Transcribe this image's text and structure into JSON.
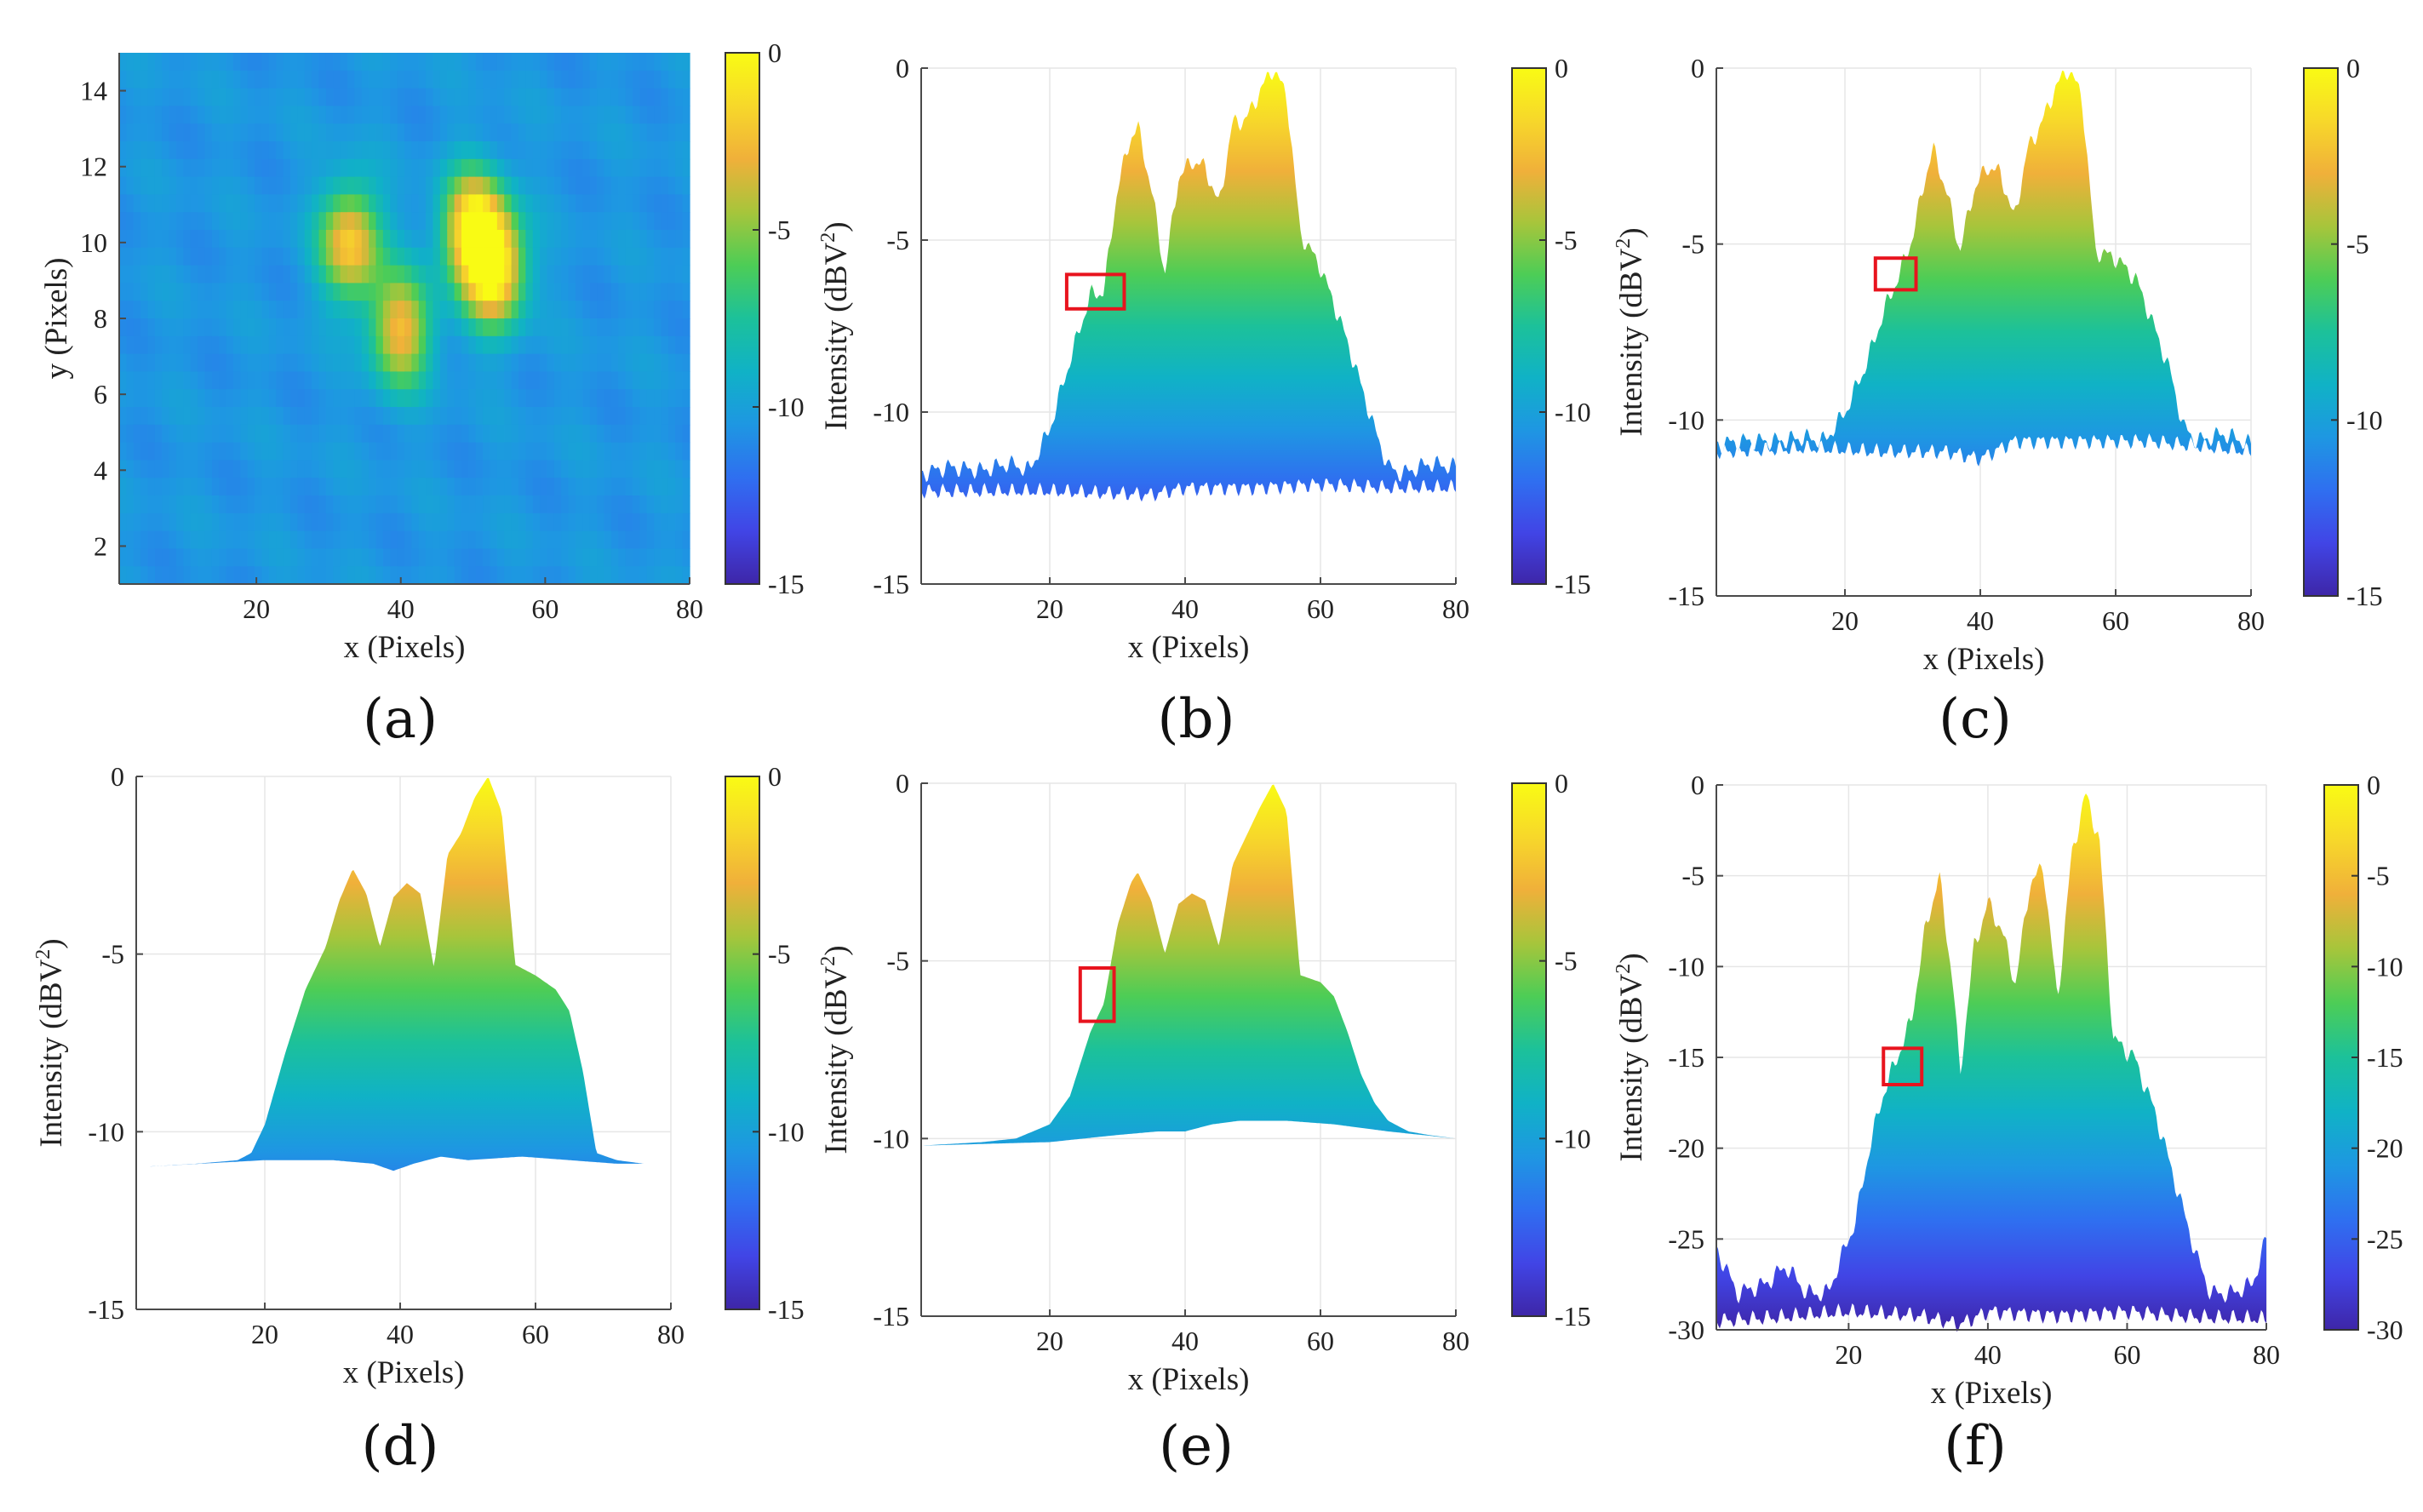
{
  "colors": {
    "colormap": [
      "#3e26a8",
      "#4145e6",
      "#2f6ff0",
      "#1e97e2",
      "#10b2c6",
      "#1cc19a",
      "#4dcd56",
      "#a7c53b",
      "#f0b03a",
      "#f7d82a",
      "#f9fb14"
    ],
    "highlight_box": "#e8141e"
  },
  "chart_data": [
    {
      "id": "a",
      "type": "heatmap",
      "tag": "(a)",
      "xlabel": "x (Pixels)",
      "ylabel": "y (Pixels)",
      "xlim": [
        1,
        80
      ],
      "ylim": [
        1,
        15
      ],
      "xticks": [
        20,
        40,
        60,
        80
      ],
      "yticks": [
        2,
        4,
        6,
        8,
        10,
        12,
        14
      ],
      "colorbar": {
        "min": -15,
        "max": 0,
        "ticks": [
          0,
          -5,
          -10,
          -15
        ]
      },
      "background_value": -10.5,
      "blobs": [
        {
          "x": 33,
          "y": 10.0,
          "peak": -1.8
        },
        {
          "x": 40,
          "y": 7.7,
          "peak": -2.5
        },
        {
          "x": 50,
          "y": 10.4,
          "peak": -0.9
        },
        {
          "x": 53,
          "y": 9.3,
          "peak": -0.4
        }
      ]
    },
    {
      "id": "b",
      "type": "area",
      "tag": "(b)",
      "xlabel": "x (Pixels)",
      "ylabel": "Intensity (dBV",
      "ylabel_sup": "2",
      "ylabel_end": ")",
      "xlim": [
        1,
        80
      ],
      "ylim": [
        -15,
        0
      ],
      "xticks": [
        20,
        40,
        60,
        80
      ],
      "yticks": [
        0,
        -5,
        -10,
        -15
      ],
      "colorbar": {
        "min": -15,
        "max": 0,
        "ticks": [
          0,
          -5,
          -10,
          -15
        ]
      },
      "noisy": true,
      "top": {
        "x": [
          1,
          5,
          10,
          14,
          17,
          20,
          23,
          26,
          28,
          30,
          32,
          33,
          35,
          37,
          39,
          41,
          43,
          45,
          47,
          49,
          51,
          53,
          55,
          57,
          60,
          63,
          65,
          68,
          70,
          72,
          76,
          80
        ],
        "y": [
          -11.8,
          -11.6,
          -11.7,
          -11.5,
          -11.7,
          -10.5,
          -8.5,
          -6.6,
          -6.5,
          -3.5,
          -2.0,
          -1.7,
          -3.5,
          -6.0,
          -3.2,
          -2.7,
          -2.9,
          -4.0,
          -1.6,
          -1.5,
          -0.7,
          0.0,
          -0.8,
          -4.8,
          -5.8,
          -7.4,
          -8.6,
          -10.5,
          -11.6,
          -11.8,
          -11.5,
          -11.6
        ]
      },
      "bottom": {
        "x": [
          1,
          20,
          35,
          40,
          50,
          60,
          70,
          80
        ],
        "y": [
          -12.3,
          -12.3,
          -12.4,
          -12.2,
          -12.2,
          -12.1,
          -12.2,
          -12.2
        ]
      },
      "highlight": {
        "x0": 22.5,
        "x1": 31,
        "y0": -7.0,
        "y1": -6.0
      }
    },
    {
      "id": "c",
      "type": "area",
      "tag": "(c)",
      "xlabel": "x (Pixels)",
      "ylabel": "Intensity (dBV",
      "ylabel_sup": "2",
      "ylabel_end": ")",
      "xlim": [
        1,
        80
      ],
      "ylim": [
        -15,
        0
      ],
      "xticks": [
        20,
        40,
        60,
        80
      ],
      "yticks": [
        0,
        -5,
        -10,
        -15
      ],
      "colorbar": {
        "min": -15,
        "max": 0,
        "ticks": [
          0,
          -5,
          -10,
          -15
        ]
      },
      "noisy": true,
      "top": {
        "x": [
          1,
          5,
          10,
          14,
          17,
          20,
          23,
          26,
          28,
          30,
          32,
          33,
          35,
          37,
          39,
          41,
          43,
          45,
          47,
          49,
          51,
          53,
          55,
          57,
          60,
          63,
          65,
          68,
          70,
          72,
          76,
          80
        ],
        "y": [
          -10.7,
          -10.6,
          -10.6,
          -10.5,
          -10.6,
          -9.8,
          -8.5,
          -6.8,
          -5.9,
          -4.8,
          -3.0,
          -2.3,
          -3.5,
          -5.2,
          -3.5,
          -2.8,
          -3.0,
          -4.3,
          -2.3,
          -1.6,
          -0.6,
          0.0,
          -0.8,
          -5.2,
          -5.4,
          -6.0,
          -7.0,
          -8.6,
          -10.2,
          -10.6,
          -10.4,
          -10.7
        ]
      },
      "bottom": {
        "x": [
          1,
          15,
          25,
          35,
          40,
          45,
          55,
          65,
          80
        ],
        "y": [
          -10.9,
          -10.8,
          -10.9,
          -10.9,
          -11.1,
          -10.6,
          -10.6,
          -10.6,
          -10.9
        ]
      },
      "highlight": {
        "x0": 24.5,
        "x1": 30.5,
        "y0": -6.3,
        "y1": -5.4
      }
    },
    {
      "id": "d",
      "type": "area",
      "tag": "(d)",
      "xlabel": "x (Pixels)",
      "ylabel": "Intensity (dBV",
      "ylabel_sup": "2",
      "ylabel_end": ")",
      "xlim": [
        1,
        80
      ],
      "ylim": [
        -15,
        0
      ],
      "xticks": [
        20,
        40,
        60,
        80
      ],
      "yticks": [
        0,
        -5,
        -10,
        -15
      ],
      "colorbar": {
        "min": -15,
        "max": 0,
        "ticks": [
          0,
          -5,
          -10,
          -15
        ]
      },
      "noisy": false,
      "top": {
        "x": [
          1,
          10,
          16,
          18,
          20,
          23,
          26,
          29,
          31,
          33,
          35,
          37,
          39,
          41,
          43,
          45,
          47,
          49,
          51,
          53,
          55,
          57,
          60,
          63,
          65,
          67,
          69,
          72,
          76,
          80
        ],
        "y": [
          -11.0,
          -10.9,
          -10.8,
          -10.6,
          -9.8,
          -7.8,
          -6.0,
          -4.8,
          -3.5,
          -2.6,
          -3.3,
          -4.8,
          -3.4,
          -3.0,
          -3.3,
          -5.4,
          -2.2,
          -1.6,
          -0.6,
          0.0,
          -1.0,
          -5.3,
          -5.6,
          -6.0,
          -6.6,
          -8.3,
          -10.6,
          -10.8,
          -10.9,
          -10.9
        ]
      },
      "bottom": {
        "x": [
          1,
          20,
          30,
          36,
          39,
          42,
          46,
          50,
          58,
          65,
          72,
          80
        ],
        "y": [
          -11.0,
          -10.8,
          -10.8,
          -10.9,
          -11.1,
          -10.9,
          -10.7,
          -10.8,
          -10.7,
          -10.8,
          -10.9,
          -10.9
        ]
      },
      "highlight": null
    },
    {
      "id": "e",
      "type": "area",
      "tag": "(e)",
      "xlabel": "x (Pixels)",
      "ylabel": "Intensity (dBV",
      "ylabel_sup": "2",
      "ylabel_end": ")",
      "xlim": [
        1,
        80
      ],
      "ylim": [
        -15,
        0
      ],
      "xticks": [
        20,
        40,
        60,
        80
      ],
      "yticks": [
        0,
        -5,
        -10,
        -15
      ],
      "colorbar": {
        "min": -15,
        "max": 0,
        "ticks": [
          0,
          -5,
          -10,
          -15
        ]
      },
      "noisy": false,
      "top": {
        "x": [
          1,
          10,
          15,
          20,
          23,
          26,
          28,
          30,
          32,
          33,
          35,
          37,
          39,
          41,
          43,
          45,
          47,
          49,
          51,
          53,
          55,
          57,
          60,
          62,
          64,
          66,
          68,
          70,
          73,
          76,
          80
        ],
        "y": [
          -10.2,
          -10.1,
          -10.0,
          -9.6,
          -8.8,
          -7.0,
          -6.2,
          -4.0,
          -2.8,
          -2.5,
          -3.3,
          -4.8,
          -3.4,
          -3.1,
          -3.3,
          -4.6,
          -2.3,
          -1.5,
          -0.7,
          0.0,
          -0.8,
          -5.4,
          -5.6,
          -6.0,
          -7.0,
          -8.2,
          -9.0,
          -9.5,
          -9.8,
          -9.9,
          -10.0
        ]
      },
      "bottom": {
        "x": [
          1,
          20,
          30,
          36,
          40,
          44,
          48,
          55,
          62,
          70,
          80
        ],
        "y": [
          -10.2,
          -10.1,
          -9.9,
          -9.8,
          -9.8,
          -9.6,
          -9.5,
          -9.5,
          -9.6,
          -9.8,
          -10.0
        ]
      },
      "highlight": {
        "x0": 24.5,
        "x1": 29.5,
        "y0": -6.7,
        "y1": -5.2
      }
    },
    {
      "id": "f",
      "type": "area",
      "tag": "(f)",
      "xlabel": "x (Pixels)",
      "ylabel": "Intensity (dBV",
      "ylabel_sup": "2",
      "ylabel_end": ")",
      "xlim": [
        1,
        80
      ],
      "ylim": [
        -30,
        0
      ],
      "xticks": [
        20,
        40,
        60,
        80
      ],
      "yticks": [
        0,
        -5,
        -10,
        -15,
        -20,
        -25,
        -30
      ],
      "colorbar": {
        "min": -30,
        "max": 0,
        "ticks": [
          0,
          -5,
          -10,
          -15,
          -20,
          -25,
          -30
        ]
      },
      "noisy": true,
      "top": {
        "x": [
          1,
          4,
          8,
          11,
          14,
          17,
          19,
          21,
          23,
          25,
          27,
          29,
          31,
          33,
          35,
          36,
          38,
          40,
          42,
          44,
          46,
          48,
          50,
          52,
          54,
          56,
          58,
          61,
          64,
          67,
          70,
          72,
          75,
          78,
          80
        ],
        "y": [
          -25.5,
          -28.0,
          -27.5,
          -26.5,
          -28.0,
          -28.0,
          -26.0,
          -24.0,
          -20.0,
          -17.0,
          -15.0,
          -13.0,
          -8.0,
          -5.0,
          -11.0,
          -16.0,
          -9.0,
          -6.5,
          -8.0,
          -11.0,
          -5.5,
          -4.5,
          -12.0,
          -4.0,
          -0.5,
          -3.0,
          -14.0,
          -15.0,
          -18.0,
          -22.0,
          -26.0,
          -28.0,
          -28.0,
          -27.5,
          -25.0
        ]
      },
      "bottom": {
        "x": [
          1,
          10,
          20,
          30,
          36,
          40,
          50,
          60,
          70,
          80
        ],
        "y": [
          -29.5,
          -29.3,
          -29.0,
          -29.2,
          -29.7,
          -29.0,
          -29.2,
          -29.0,
          -29.3,
          -29.4
        ]
      },
      "highlight": {
        "x0": 25,
        "x1": 30.5,
        "y0": -16.5,
        "y1": -14.5
      }
    }
  ]
}
